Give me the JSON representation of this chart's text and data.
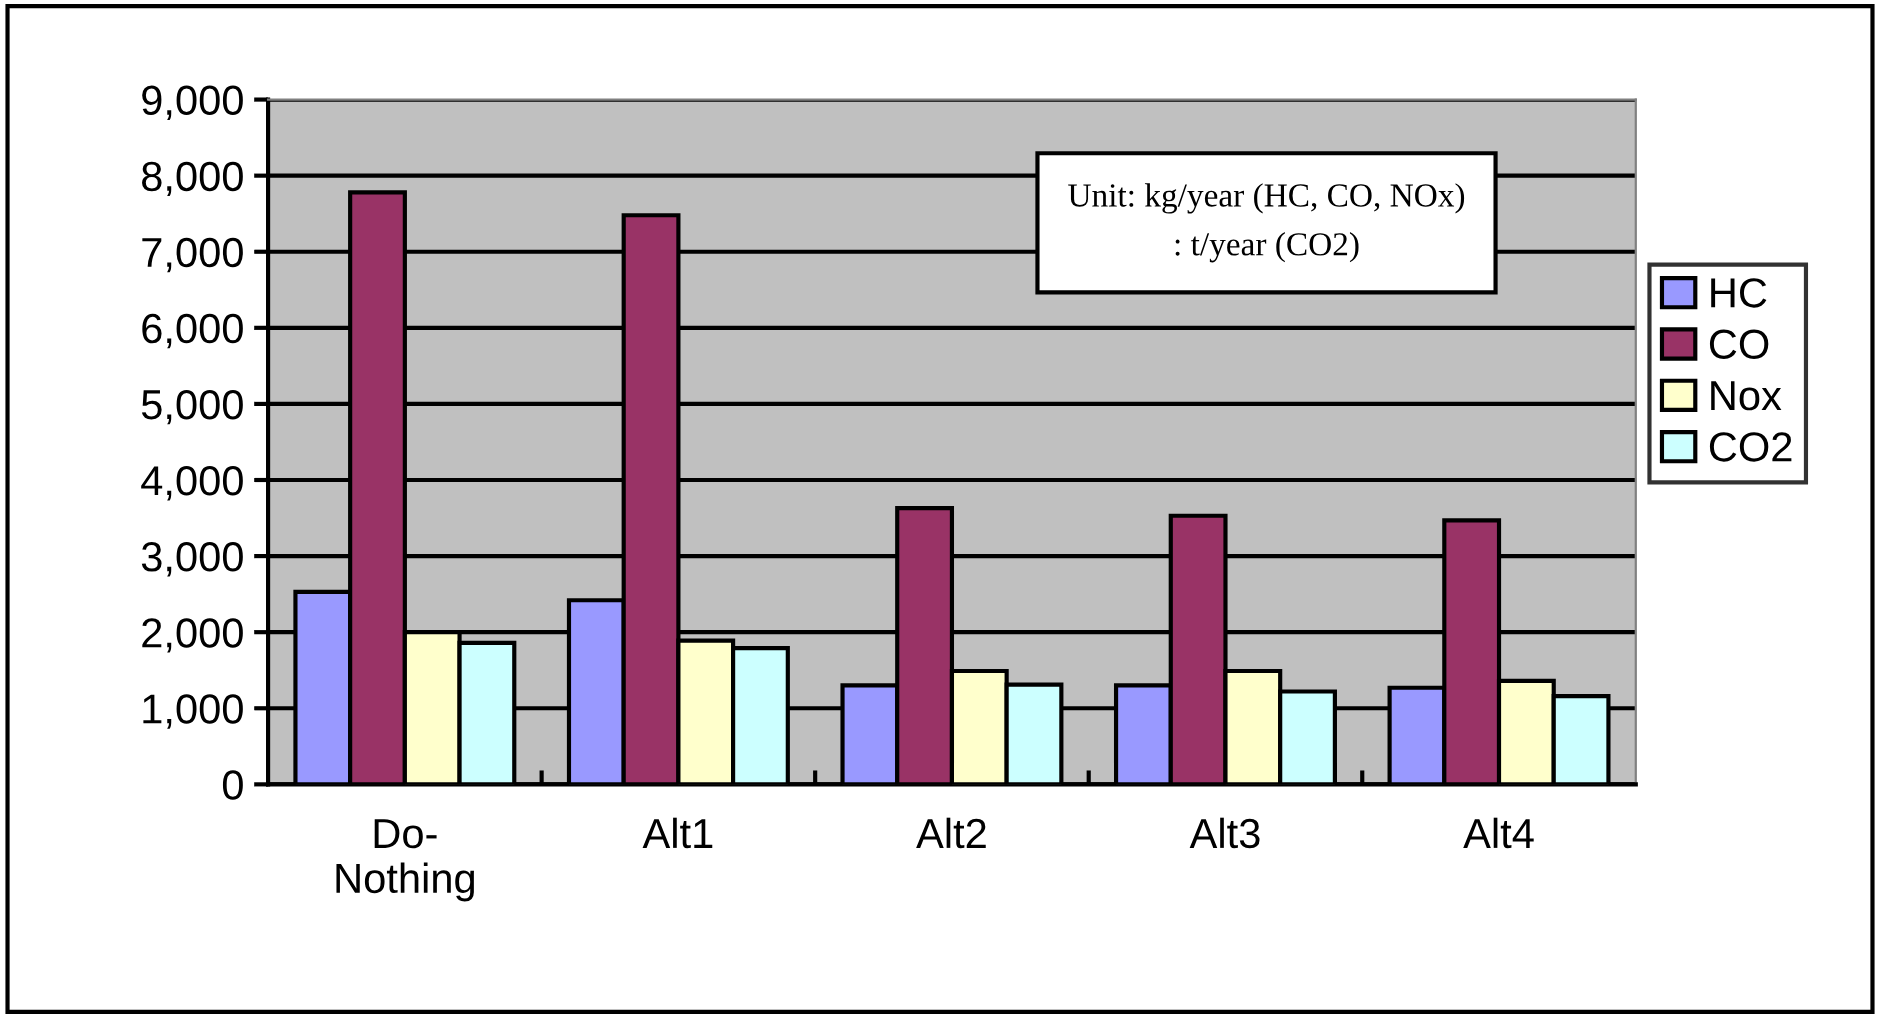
{
  "chart_data": {
    "type": "bar",
    "categories": [
      "Do-\nNothing",
      "Alt1",
      "Alt2",
      "Alt3",
      "Alt4"
    ],
    "series": [
      {
        "name": "HC",
        "color": "#9999ff",
        "values": [
          2530,
          2420,
          1300,
          1300,
          1270
        ]
      },
      {
        "name": "CO",
        "color": "#993366",
        "values": [
          7780,
          7480,
          3630,
          3530,
          3470
        ]
      },
      {
        "name": "Nox",
        "color": "#ffffcc",
        "values": [
          2000,
          1890,
          1490,
          1490,
          1360
        ]
      },
      {
        "name": "CO2",
        "color": "#ccffff",
        "values": [
          1860,
          1790,
          1310,
          1220,
          1160
        ]
      }
    ],
    "ylim": [
      0,
      9000
    ],
    "yticks": [
      {
        "value": 0,
        "label": "0"
      },
      {
        "value": 1000,
        "label": "1,000"
      },
      {
        "value": 2000,
        "label": "2,000"
      },
      {
        "value": 3000,
        "label": "3,000"
      },
      {
        "value": 4000,
        "label": "4,000"
      },
      {
        "value": 5000,
        "label": "5,000"
      },
      {
        "value": 6000,
        "label": "6,000"
      },
      {
        "value": 7000,
        "label": "7,000"
      },
      {
        "value": 8000,
        "label": "8,000"
      },
      {
        "value": 9000,
        "label": "9,000"
      }
    ],
    "grid": "y",
    "legend": "right",
    "annotations": [
      "Unit: kg/year (HC, CO, NOx)\n: t/year (CO2)"
    ]
  }
}
